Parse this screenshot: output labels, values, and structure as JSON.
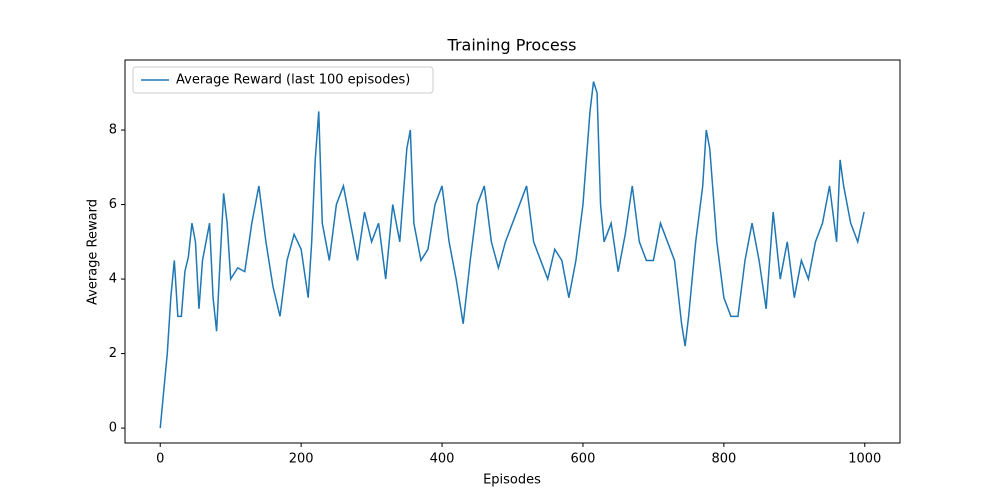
{
  "chart_data": {
    "type": "line",
    "title": "Training Process",
    "x_label": "Episodes",
    "y_label": "Average Reward",
    "x": [
      0,
      5,
      10,
      15,
      20,
      25,
      30,
      35,
      40,
      45,
      50,
      55,
      60,
      65,
      70,
      75,
      80,
      85,
      90,
      95,
      100,
      110,
      120,
      130,
      140,
      150,
      160,
      170,
      180,
      190,
      200,
      210,
      215,
      220,
      225,
      230,
      240,
      250,
      260,
      270,
      280,
      290,
      300,
      310,
      320,
      330,
      340,
      350,
      355,
      360,
      370,
      380,
      390,
      400,
      410,
      420,
      430,
      440,
      450,
      460,
      470,
      480,
      490,
      500,
      510,
      520,
      530,
      540,
      550,
      560,
      570,
      580,
      590,
      600,
      610,
      615,
      620,
      625,
      630,
      640,
      650,
      660,
      670,
      680,
      690,
      700,
      710,
      720,
      730,
      740,
      745,
      750,
      760,
      770,
      775,
      780,
      790,
      800,
      810,
      820,
      830,
      840,
      850,
      860,
      870,
      880,
      890,
      900,
      910,
      920,
      930,
      940,
      950,
      960,
      965,
      970,
      980,
      990,
      999
    ],
    "series": [
      {
        "name": "Average Reward (last 100 episodes)",
        "color": "#1f77b4",
        "values": [
          0,
          1.0,
          2,
          3.5,
          4.5,
          3,
          3,
          4.2,
          4.6,
          5.5,
          5,
          3.2,
          4.5,
          5,
          5.5,
          3.5,
          2.6,
          4.5,
          6.3,
          5.5,
          4,
          4.3,
          4.2,
          5.5,
          6.5,
          5,
          3.8,
          3,
          4.5,
          5.2,
          4.8,
          3.5,
          5,
          7.2,
          8.5,
          5.5,
          4.5,
          6,
          6.5,
          5.5,
          4.5,
          5.8,
          5,
          5.5,
          4,
          6,
          5,
          7.5,
          8,
          5.5,
          4.5,
          4.8,
          6,
          6.5,
          5,
          4,
          2.8,
          4.5,
          6,
          6.5,
          5,
          4.3,
          5,
          5.5,
          6,
          6.5,
          5,
          4.5,
          4,
          4.8,
          4.5,
          3.5,
          4.5,
          6,
          8.5,
          9.3,
          9,
          6,
          5,
          5.5,
          4.2,
          5.2,
          6.5,
          5,
          4.5,
          4.5,
          5.5,
          5,
          4.5,
          2.8,
          2.2,
          3,
          5,
          6.5,
          8,
          7.5,
          5,
          3.5,
          3,
          3,
          4.5,
          5.5,
          4.5,
          3.2,
          5.8,
          4,
          5,
          3.5,
          4.5,
          4,
          5,
          5.5,
          6.5,
          5,
          7.2,
          6.5,
          5.5,
          5,
          5.8
        ]
      }
    ],
    "xlim": [
      -50,
      1050
    ],
    "ylim": [
      -0.4,
      9.88
    ],
    "xticks": [
      0,
      200,
      400,
      600,
      800,
      1000
    ],
    "yticks": [
      0,
      2,
      4,
      6,
      8
    ],
    "legend": "upper left"
  }
}
